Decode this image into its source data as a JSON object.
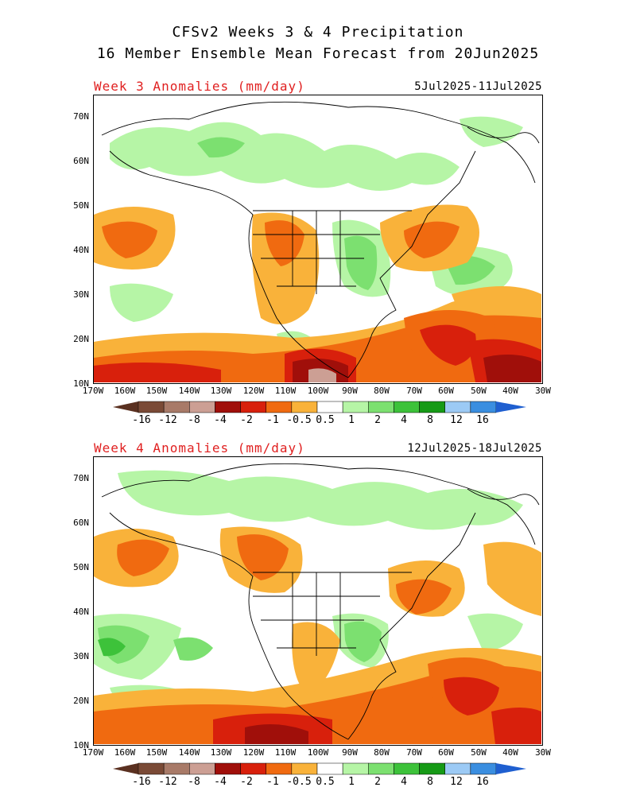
{
  "header": {
    "line1": "CFSv2 Weeks 3 & 4 Precipitation",
    "line2": "16 Member Ensemble Mean Forecast from 20Jun2025"
  },
  "panels": [
    {
      "label": "Week 3 Anomalies (mm/day)",
      "dates": "5Jul2025-11Jul2025"
    },
    {
      "label": "Week 4 Anomalies (mm/day)",
      "dates": "12Jul2025-18Jul2025"
    }
  ],
  "axes": {
    "lat_labels": [
      "70N",
      "60N",
      "50N",
      "40N",
      "30N",
      "20N",
      "10N"
    ],
    "lon_labels": [
      "170W",
      "160W",
      "150W",
      "140W",
      "130W",
      "120W",
      "110W",
      "100W",
      "90W",
      "80W",
      "70W",
      "60W",
      "50W",
      "40W",
      "30W"
    ]
  },
  "colorbar": {
    "labels": [
      "-16",
      "-12",
      "-8",
      "-4",
      "-2",
      "-1",
      "-0.5",
      "0.5",
      "1",
      "2",
      "4",
      "8",
      "12",
      "16"
    ],
    "colors": [
      "#7a4a36",
      "#a87a68",
      "#cc9f94",
      "#a00f0a",
      "#d8200c",
      "#f06a10",
      "#f9b23a",
      "#ffffff",
      "#b6f5a6",
      "#7ce070",
      "#3dc23a",
      "#169a16",
      "#9ccaf5",
      "#3a8ee0"
    ],
    "low_end_color": "#5a3020",
    "high_end_color": "#1f5fd0"
  }
}
